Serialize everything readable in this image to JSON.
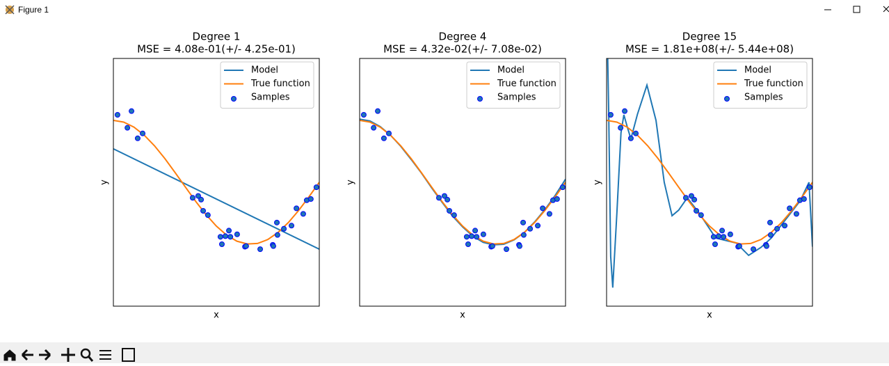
{
  "window": {
    "title": "Figure 1"
  },
  "chart_data": [
    {
      "type": "line",
      "title": "Degree 1",
      "subtitle": "MSE = 4.08e-01(+/- 4.25e-01)",
      "x_label": "x",
      "y_label": "y",
      "xlim": [
        0,
        1
      ],
      "ylim": [
        -2,
        2
      ],
      "legend": "upper right",
      "series": [
        {
          "name": "Model",
          "type": "line",
          "color": "#1f77b4",
          "x": [
            0,
            1
          ],
          "values": [
            0.54,
            -1.08
          ]
        },
        {
          "name": "True function",
          "type": "line",
          "color": "#ff7f0e",
          "x": [
            0,
            0.05,
            0.1,
            0.15,
            0.2,
            0.25,
            0.3,
            0.35,
            0.4,
            0.45,
            0.5,
            0.55,
            0.6,
            0.65,
            0.7,
            0.75,
            0.8,
            0.85,
            0.9,
            0.95,
            1
          ],
          "values": [
            1,
            0.972,
            0.891,
            0.76,
            0.588,
            0.383,
            0.156,
            -0.078,
            -0.309,
            -0.522,
            -0.707,
            -0.853,
            -0.951,
            -0.996,
            -0.988,
            -0.924,
            -0.809,
            -0.649,
            -0.454,
            -0.233,
            0
          ]
        },
        {
          "name": "Samples",
          "type": "scatter",
          "color": "#1f77b4",
          "edgecolor": "#0000ff",
          "x": [
            0.02,
            0.068,
            0.088,
            0.118,
            0.142,
            0.385,
            0.412,
            0.426,
            0.436,
            0.459,
            0.52,
            0.527,
            0.544,
            0.561,
            0.568,
            0.601,
            0.639,
            0.645,
            0.713,
            0.774,
            0.777,
            0.797,
            0.794,
            0.828,
            0.865,
            0.889,
            0.922,
            0.939,
            0.959,
            0.986
          ],
          "values": [
            1.09,
            0.88,
            1.15,
            0.71,
            0.79,
            -0.25,
            -0.22,
            -0.28,
            -0.46,
            -0.53,
            -0.88,
            -1.0,
            -0.87,
            -0.78,
            -0.88,
            -0.84,
            -1.04,
            -1.03,
            -1.08,
            -1.01,
            -1.03,
            -0.85,
            -0.65,
            -0.75,
            -0.7,
            -0.42,
            -0.51,
            -0.29,
            -0.27,
            -0.08
          ]
        }
      ]
    },
    {
      "type": "line",
      "title": "Degree 4",
      "subtitle": "MSE = 4.32e-02(+/- 7.08e-02)",
      "x_label": "x",
      "y_label": "y",
      "xlim": [
        0,
        1
      ],
      "ylim": [
        -2,
        2
      ],
      "legend": "upper right",
      "series": [
        {
          "name": "Model",
          "type": "line",
          "color": "#1f77b4",
          "x": [
            0,
            0.05,
            0.1,
            0.15,
            0.2,
            0.25,
            0.3,
            0.35,
            0.4,
            0.45,
            0.5,
            0.55,
            0.6,
            0.65,
            0.7,
            0.75,
            0.8,
            0.85,
            0.9,
            0.95,
            1
          ],
          "values": [
            1.02,
            0.99,
            0.9,
            0.76,
            0.58,
            0.37,
            0.15,
            -0.09,
            -0.32,
            -0.54,
            -0.72,
            -0.87,
            -0.97,
            -1.01,
            -1.0,
            -0.93,
            -0.81,
            -0.64,
            -0.44,
            -0.21,
            0.05
          ]
        },
        {
          "name": "True function",
          "type": "line",
          "color": "#ff7f0e",
          "x": [
            0,
            0.05,
            0.1,
            0.15,
            0.2,
            0.25,
            0.3,
            0.35,
            0.4,
            0.45,
            0.5,
            0.55,
            0.6,
            0.65,
            0.7,
            0.75,
            0.8,
            0.85,
            0.9,
            0.95,
            1
          ],
          "values": [
            1,
            0.972,
            0.891,
            0.76,
            0.588,
            0.383,
            0.156,
            -0.078,
            -0.309,
            -0.522,
            -0.707,
            -0.853,
            -0.951,
            -0.996,
            -0.988,
            -0.924,
            -0.809,
            -0.649,
            -0.454,
            -0.233,
            0
          ]
        },
        {
          "name": "Samples",
          "type": "scatter",
          "color": "#1f77b4",
          "edgecolor": "#0000ff",
          "x": [
            0.02,
            0.068,
            0.088,
            0.118,
            0.142,
            0.385,
            0.412,
            0.426,
            0.436,
            0.459,
            0.52,
            0.527,
            0.544,
            0.561,
            0.568,
            0.601,
            0.639,
            0.645,
            0.713,
            0.774,
            0.777,
            0.797,
            0.794,
            0.828,
            0.865,
            0.889,
            0.922,
            0.939,
            0.959,
            0.986
          ],
          "values": [
            1.09,
            0.88,
            1.15,
            0.71,
            0.79,
            -0.25,
            -0.22,
            -0.28,
            -0.46,
            -0.53,
            -0.88,
            -1.0,
            -0.87,
            -0.78,
            -0.88,
            -0.84,
            -1.04,
            -1.03,
            -1.08,
            -1.01,
            -1.03,
            -0.85,
            -0.65,
            -0.75,
            -0.7,
            -0.42,
            -0.51,
            -0.29,
            -0.27,
            -0.08
          ]
        }
      ]
    },
    {
      "type": "line",
      "title": "Degree 15",
      "subtitle": "MSE = 1.81e+08(+/- 5.44e+08)",
      "x_label": "x",
      "y_label": "y",
      "xlim": [
        0,
        1
      ],
      "ylim": [
        -2,
        2
      ],
      "legend": "upper right",
      "series": [
        {
          "name": "Model",
          "type": "line",
          "color": "#1f77b4",
          "x": [
            0,
            0.01,
            0.02,
            0.03,
            0.05,
            0.07,
            0.084,
            0.1,
            0.118,
            0.15,
            0.196,
            0.24,
            0.28,
            0.318,
            0.35,
            0.392,
            0.45,
            0.53,
            0.63,
            0.69,
            0.75,
            0.8,
            0.87,
            0.94,
            0.983,
            1
          ],
          "values": [
            3.0,
            1.2,
            -1.2,
            -1.7,
            -0.5,
            0.8,
            1.09,
            0.9,
            0.7,
            1.1,
            1.57,
            1.0,
            0.0,
            -0.54,
            -0.45,
            -0.25,
            -0.5,
            -0.9,
            -0.98,
            -1.18,
            -1.05,
            -0.9,
            -0.6,
            -0.3,
            0.0,
            -1.04
          ]
        },
        {
          "name": "True function",
          "type": "line",
          "color": "#ff7f0e",
          "x": [
            0,
            0.05,
            0.1,
            0.15,
            0.2,
            0.25,
            0.3,
            0.35,
            0.4,
            0.45,
            0.5,
            0.55,
            0.6,
            0.65,
            0.7,
            0.75,
            0.8,
            0.85,
            0.9,
            0.95,
            1
          ],
          "values": [
            1,
            0.972,
            0.891,
            0.76,
            0.588,
            0.383,
            0.156,
            -0.078,
            -0.309,
            -0.522,
            -0.707,
            -0.853,
            -0.951,
            -0.996,
            -0.988,
            -0.924,
            -0.809,
            -0.649,
            -0.454,
            -0.233,
            0
          ]
        },
        {
          "name": "Samples",
          "type": "scatter",
          "color": "#1f77b4",
          "edgecolor": "#0000ff",
          "x": [
            0.02,
            0.068,
            0.088,
            0.118,
            0.142,
            0.385,
            0.412,
            0.426,
            0.436,
            0.459,
            0.52,
            0.527,
            0.544,
            0.561,
            0.568,
            0.601,
            0.639,
            0.645,
            0.713,
            0.774,
            0.777,
            0.797,
            0.794,
            0.828,
            0.865,
            0.889,
            0.922,
            0.939,
            0.959,
            0.986
          ],
          "values": [
            1.09,
            0.88,
            1.15,
            0.71,
            0.79,
            -0.25,
            -0.22,
            -0.28,
            -0.46,
            -0.53,
            -0.88,
            -1.0,
            -0.87,
            -0.78,
            -0.88,
            -0.84,
            -1.04,
            -1.03,
            -1.08,
            -1.01,
            -1.03,
            -0.85,
            -0.65,
            -0.75,
            -0.7,
            -0.42,
            -0.51,
            -0.29,
            -0.27,
            -0.08
          ]
        }
      ]
    }
  ]
}
